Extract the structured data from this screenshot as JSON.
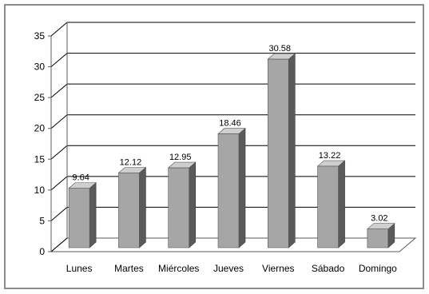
{
  "chart_data": {
    "type": "bar",
    "style": "3d-column",
    "categories": [
      "Lunes",
      "Martes",
      "Miércoles",
      "Jueves",
      "Viernes",
      "Sábado",
      "Domingo"
    ],
    "values": [
      9.64,
      12.12,
      12.95,
      18.46,
      30.58,
      13.22,
      3.02
    ],
    "data_labels": [
      "9.64",
      "12.12",
      "12.95",
      "18.46",
      "30.58",
      "13.22",
      "3.02"
    ],
    "ylim": [
      0,
      35
    ],
    "yticks": [
      "0",
      "5",
      "10",
      "15",
      "20",
      "25",
      "30",
      "35"
    ],
    "title": "",
    "xlabel": "",
    "ylabel": "",
    "grid": true,
    "legend": "none",
    "colors": {
      "bar_front": "#a6a6a6",
      "bar_side": "#5a5a5a",
      "bar_top": "#cfcfcf",
      "gridline": "#000000",
      "axis": "#595959",
      "border": "#8c8c8c"
    }
  }
}
